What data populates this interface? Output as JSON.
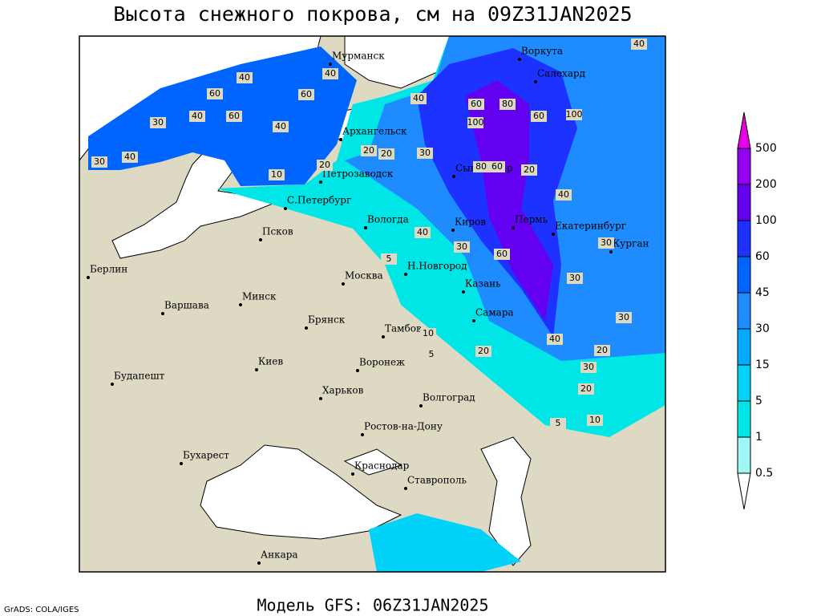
{
  "title": "Высота снежного покрова, см на 09Z31JAN2025",
  "footer": {
    "credit": "GrADS: COLA/IGES",
    "model": "Модель GFS: 06Z31JAN2025"
  },
  "legend": {
    "levels": [
      0.5,
      1,
      5,
      15,
      30,
      45,
      60,
      100,
      200,
      500
    ],
    "colors": [
      "#ffffff",
      "#a0f5f5",
      "#00e6e6",
      "#00d2fa",
      "#00aaff",
      "#1e8cff",
      "#0064ff",
      "#1e32ff",
      "#6400f0",
      "#9600f0",
      "#e600e6"
    ]
  },
  "cities": [
    "Мурманск",
    "Воркута",
    "Салехард",
    "Архангельск",
    "Петрозаводск",
    "Сыктывкар",
    "С.Петербург",
    "Вологда",
    "Киров",
    "Пермь",
    "Екатеринбург",
    "Курган",
    "Псков",
    "Н.Новгород",
    "Казань",
    "Берлин",
    "Москва",
    "Минск",
    "Варшава",
    "Брянск",
    "Тамбов",
    "Самара",
    "Киев",
    "Воронеж",
    "Будапешт",
    "Харьков",
    "Волгоград",
    "Ростов-на-Дону",
    "Бухарест",
    "Краснодар",
    "Ставрополь",
    "Анкара"
  ],
  "contour_labels": [
    "40",
    "40",
    "40",
    "60",
    "60",
    "40",
    "60",
    "30",
    "40",
    "30",
    "40",
    "60",
    "100",
    "80",
    "100",
    "60",
    "40",
    "20",
    "20",
    "10",
    "20",
    "30",
    "80",
    "60",
    "20",
    "40",
    "30",
    "40",
    "60",
    "30",
    "30",
    "30",
    "20",
    "30",
    "20",
    "10",
    "10",
    "5",
    "5",
    "40",
    "20",
    "5"
  ]
}
